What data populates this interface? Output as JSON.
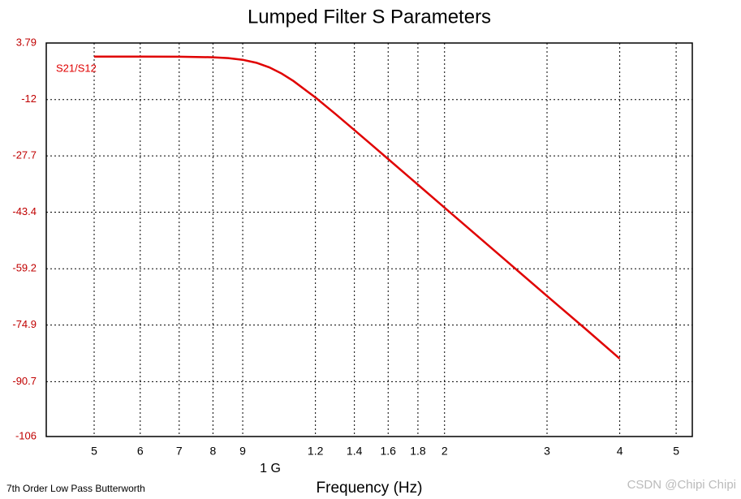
{
  "chart_data": {
    "type": "line",
    "title": "Lumped Filter S Parameters",
    "x_label": "Frequency (Hz)",
    "x_unit_annotation": "1 G",
    "footer": "7th Order Low Pass Butterworth",
    "watermark": "CSDN @Chipi Chipi",
    "x_scale": "log",
    "grid": true,
    "x": [
      500000000,
      600000000,
      700000000,
      800000000,
      850000000,
      900000000,
      950000000,
      1000000000,
      1050000000,
      1100000000,
      1200000000,
      1300000000,
      1400000000,
      1500000000,
      1600000000,
      1800000000,
      2000000000,
      2500000000,
      3000000000,
      3500000000,
      4000000000
    ],
    "series": [
      {
        "name": "S21/S12",
        "color": "#e00000",
        "values": [
          0,
          -0.003,
          -0.029,
          -0.187,
          -0.425,
          -0.896,
          -1.725,
          -3.01,
          -4.74,
          -6.81,
          -11.41,
          -16.06,
          -20.5,
          -24.67,
          -28.58,
          -35.74,
          -42.14,
          -55.71,
          -66.8,
          -76.09,
          -84.29
        ]
      }
    ],
    "xlim": [
      413700000,
      5330000000
    ],
    "xticks": [
      {
        "value": 500000000,
        "label": "5"
      },
      {
        "value": 600000000,
        "label": "6"
      },
      {
        "value": 700000000,
        "label": "7"
      },
      {
        "value": 800000000,
        "label": "8"
      },
      {
        "value": 900000000,
        "label": "9"
      },
      {
        "value": 1200000000,
        "label": "1.2"
      },
      {
        "value": 1400000000,
        "label": "1.4"
      },
      {
        "value": 1600000000,
        "label": "1.6"
      },
      {
        "value": 1800000000,
        "label": "1.8"
      },
      {
        "value": 2000000000,
        "label": "2"
      },
      {
        "value": 3000000000,
        "label": "3"
      },
      {
        "value": 4000000000,
        "label": "4"
      },
      {
        "value": 5000000000,
        "label": "5"
      }
    ],
    "ylim": [
      -106,
      3.79
    ],
    "yticks": [
      3.79,
      -12,
      -27.7,
      -43.4,
      -59.2,
      -74.9,
      -90.7,
      -106
    ]
  }
}
